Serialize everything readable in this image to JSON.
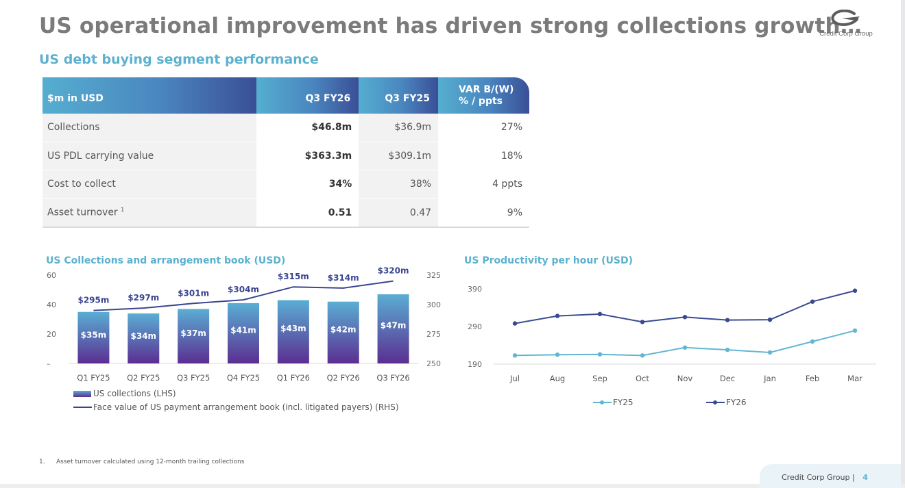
{
  "title": "US operational improvement has driven strong collections growth…",
  "subtitle": "US debt buying segment performance",
  "logo": {
    "name": "Credit Corp Group",
    "brand_color": "#5d5d5d"
  },
  "table": {
    "headers": [
      "$m in USD",
      "Q3 FY26",
      "Q3 FY25",
      "VAR B/(W)",
      "% / ppts"
    ],
    "rows": [
      {
        "label": "Collections",
        "sup": "",
        "cur": "$46.8m",
        "prev": "$36.9m",
        "var": "27%"
      },
      {
        "label": "US PDL carrying value",
        "sup": "",
        "cur": "$363.3m",
        "prev": "$309.1m",
        "var": "18%"
      },
      {
        "label": "Cost to collect",
        "sup": "",
        "cur": "34%",
        "prev": "38%",
        "var": "4 ppts"
      },
      {
        "label": "Asset turnover",
        "sup": "1",
        "cur": "0.51",
        "prev": "0.47",
        "var": "9%"
      }
    ]
  },
  "colors": {
    "accent": "#5bb1cf",
    "navy": "#3a4590",
    "bar_top": "#5aaed4",
    "bar_bottom": "#5b2e91",
    "fy25": "#62b6d2",
    "fy26": "#394a8f"
  },
  "chart_data": [
    {
      "type": "bar",
      "title": "US Collections and arrangement book (USD)",
      "categories": [
        "Q1 FY25",
        "Q2 FY25",
        "Q3 FY25",
        "Q4 FY25",
        "Q1 FY26",
        "Q2 FY26",
        "Q3 FY26"
      ],
      "series": [
        {
          "name": "US collections (LHS)",
          "kind": "bar",
          "axis": "left",
          "values": [
            35,
            34,
            37,
            41,
            43,
            42,
            47
          ],
          "labels": [
            "$35m",
            "$34m",
            "$37m",
            "$41m",
            "$43m",
            "$42m",
            "$47m"
          ]
        },
        {
          "name": "Face value of US payment arrangement book (incl. litigated payers) (RHS)",
          "kind": "line",
          "axis": "right",
          "values": [
            295,
            297,
            301,
            304,
            315,
            314,
            320
          ],
          "labels": [
            "$295m",
            "$297m",
            "$301m",
            "$304m",
            "$315m",
            "$314m",
            "$320m"
          ]
        }
      ],
      "yleft": {
        "ticks": [
          "–",
          "20",
          "40",
          "60"
        ],
        "values": [
          0,
          20,
          40,
          60
        ],
        "ylim": [
          0,
          60
        ]
      },
      "yright": {
        "ticks": [
          "250",
          "275",
          "300",
          "325"
        ],
        "values": [
          250,
          275,
          300,
          325
        ],
        "ylim": [
          250,
          325
        ]
      },
      "legend_position": "bottom-left",
      "grid": false
    },
    {
      "type": "line",
      "title": "US Productivity per hour (USD)",
      "categories": [
        "Jul",
        "Aug",
        "Sep",
        "Oct",
        "Nov",
        "Dec",
        "Jan",
        "Feb",
        "Mar"
      ],
      "series": [
        {
          "name": "FY25",
          "values": [
            213,
            215,
            216,
            213,
            234,
            228,
            221,
            250,
            279
          ]
        },
        {
          "name": "FY26",
          "values": [
            298,
            318,
            323,
            302,
            315,
            307,
            308,
            356,
            385
          ]
        }
      ],
      "yticks": [
        "190",
        "290",
        "390"
      ],
      "ytick_values": [
        190,
        290,
        390
      ],
      "ylim": [
        190,
        390
      ],
      "legend_position": "bottom-center",
      "grid": false
    }
  ],
  "footnote": {
    "number": "1.",
    "text": "Asset turnover calculated using 12-month trailing collections"
  },
  "footer": {
    "company": "Credit Corp Group",
    "separator": "|",
    "page": "4"
  }
}
